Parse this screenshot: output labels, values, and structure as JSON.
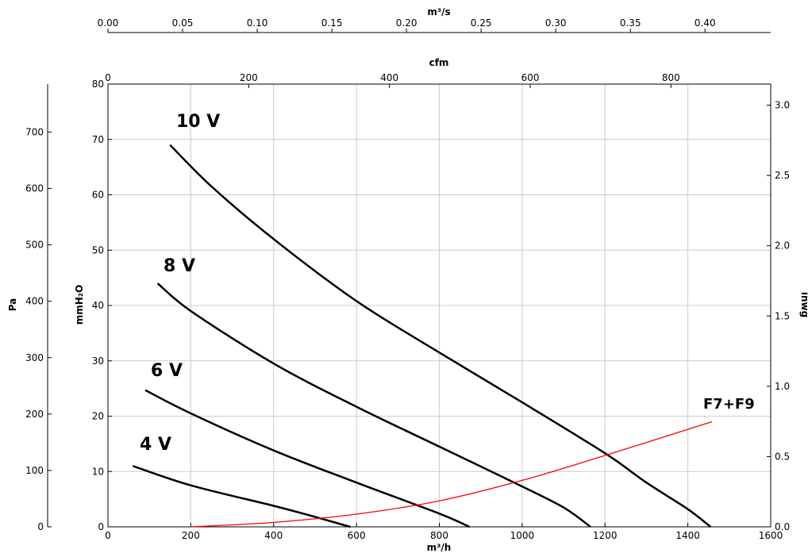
{
  "chart_data": {
    "type": "line",
    "grid": true,
    "axes": {
      "x_bottom": {
        "label": "m³/h",
        "lim": [
          0,
          1600
        ],
        "ticks": [
          "0",
          "200",
          "400",
          "600",
          "800",
          "1000",
          "1200",
          "1400",
          "1600"
        ]
      },
      "x_cfm": {
        "label": "cfm",
        "lim": [
          0,
          941.7
        ],
        "ticks": [
          "0",
          "200",
          "400",
          "600",
          "800"
        ]
      },
      "x_top": {
        "label": "m³/s",
        "lim": [
          0,
          0.444
        ],
        "ticks": [
          "0.00",
          "0.05",
          "0.10",
          "0.15",
          "0.20",
          "0.25",
          "0.30",
          "0.35",
          "0.40"
        ]
      },
      "y_left_mmH2O": {
        "label": "mmH₂O",
        "lim": [
          0,
          80
        ],
        "ticks": [
          "0",
          "10",
          "20",
          "30",
          "40",
          "50",
          "60",
          "70",
          "80"
        ]
      },
      "y_pa": {
        "label": "Pa",
        "lim": [
          0,
          785
        ],
        "ticks": [
          "0",
          "100",
          "200",
          "300",
          "400",
          "500",
          "600",
          "700"
        ]
      },
      "y_inwg": {
        "label": "inwg",
        "lim": [
          0,
          3.15
        ],
        "ticks": [
          "0.0",
          "0.5",
          "1.0",
          "1.5",
          "2.0",
          "2.5",
          "3.0"
        ]
      }
    },
    "series": [
      {
        "name": "10 V",
        "color": "#000000",
        "points": [
          [
            150,
            69
          ],
          [
            250,
            61.5
          ],
          [
            400,
            52
          ],
          [
            600,
            40.8
          ],
          [
            800,
            31.5
          ],
          [
            1000,
            22.5
          ],
          [
            1200,
            13.3
          ],
          [
            1300,
            8
          ],
          [
            1400,
            3.2
          ],
          [
            1455,
            0
          ]
        ]
      },
      {
        "name": "8 V",
        "color": "#000000",
        "points": [
          [
            120,
            44
          ],
          [
            200,
            39
          ],
          [
            400,
            29.5
          ],
          [
            600,
            21.7
          ],
          [
            800,
            14.5
          ],
          [
            1000,
            7.3
          ],
          [
            1100,
            3.5
          ],
          [
            1165,
            0
          ]
        ]
      },
      {
        "name": "6 V",
        "color": "#000000",
        "points": [
          [
            90,
            24.7
          ],
          [
            200,
            20.5
          ],
          [
            400,
            13.8
          ],
          [
            600,
            8
          ],
          [
            800,
            2.4
          ],
          [
            873,
            0
          ]
        ]
      },
      {
        "name": "4 V",
        "color": "#000000",
        "points": [
          [
            60,
            11
          ],
          [
            200,
            7.5
          ],
          [
            400,
            3.8
          ],
          [
            500,
            1.8
          ],
          [
            585,
            0
          ]
        ]
      },
      {
        "name": "F7+F9",
        "color": "#ff0000",
        "points": [
          [
            200,
            0
          ],
          [
            400,
            0.8
          ],
          [
            600,
            2.3
          ],
          [
            800,
            4.7
          ],
          [
            1000,
            8.4
          ],
          [
            1200,
            12.9
          ],
          [
            1458,
            19
          ]
        ]
      }
    ]
  }
}
